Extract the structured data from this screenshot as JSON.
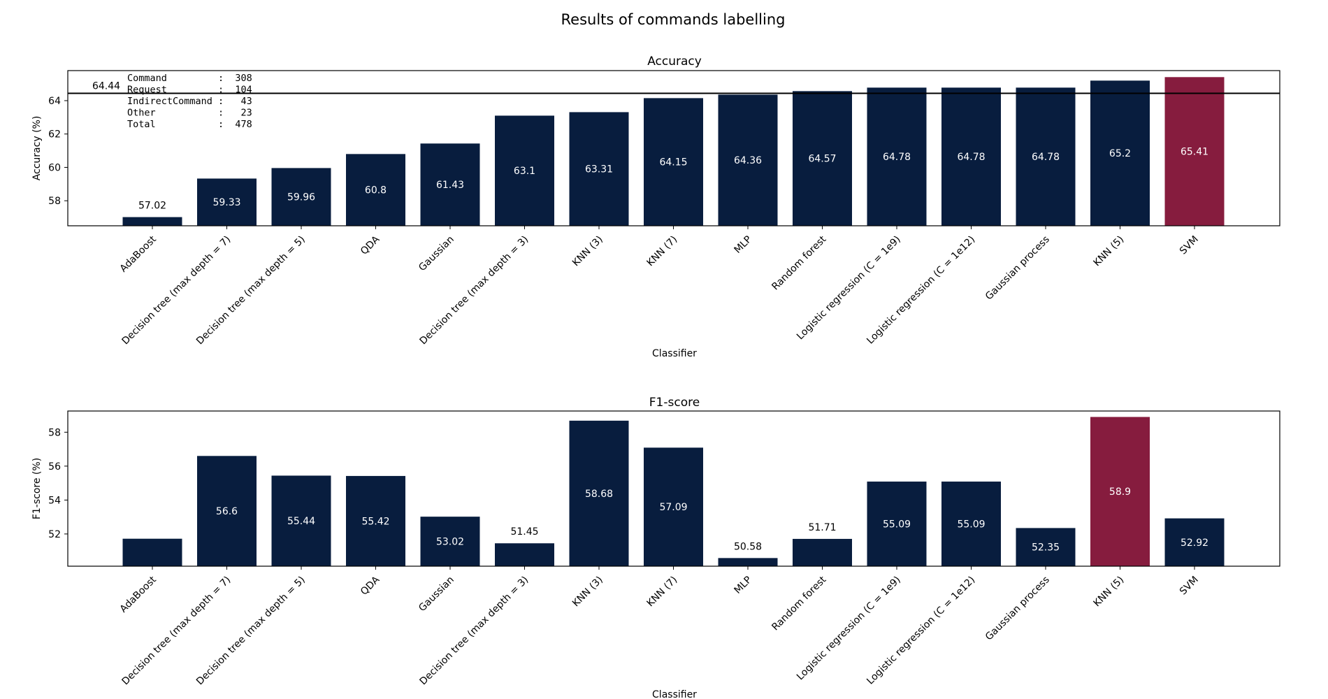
{
  "figure": {
    "title": "Results of commands labelling"
  },
  "colors": {
    "bar": "#081d3e",
    "highlight": "#861c3e",
    "frame": "#000000",
    "inside_label": "#ffffff",
    "outside_label": "#000000"
  },
  "chart_data": [
    {
      "type": "bar",
      "title": "Accuracy",
      "xlabel": "Classifier",
      "ylabel": "Accuracy (%)",
      "ylim": [
        56.5,
        65.8
      ],
      "yticks": [
        58,
        60,
        62,
        64
      ],
      "categories": [
        "AdaBoost",
        "Decision tree (max depth = 7)",
        "Decision tree (max depth = 5)",
        "QDA",
        "Gaussian",
        "Decision tree (max depth = 3)",
        "KNN (3)",
        "KNN (7)",
        "MLP",
        "Random forest",
        "Logistic regression (C = 1e9)",
        "Logistic regression (C = 1e12)",
        "Gaussian process",
        "KNN (5)",
        "SVM"
      ],
      "values": [
        57.02,
        59.33,
        59.96,
        60.8,
        61.43,
        63.1,
        63.31,
        64.15,
        64.36,
        64.57,
        64.78,
        64.78,
        64.78,
        65.2,
        65.41
      ],
      "value_labels": [
        "57.02",
        "59.33",
        "59.96",
        "60.8",
        "61.43",
        "63.1",
        "63.31",
        "64.15",
        "64.36",
        "64.57",
        "64.78",
        "64.78",
        "64.78",
        "65.2",
        "65.41"
      ],
      "highlight_index": 14,
      "reference_line": {
        "value": 64.44,
        "label": "64.44"
      },
      "annotation_lines": [
        "Command         :  308",
        "Request         :  104",
        "IndirectCommand :   43",
        "Other           :   23",
        "Total           :  478"
      ],
      "grid": false,
      "legend": "none"
    },
    {
      "type": "bar",
      "title": "F1-score",
      "xlabel": "Classifier",
      "ylabel": "F1-score (%)",
      "ylim": [
        50.1,
        59.25
      ],
      "yticks": [
        52,
        54,
        56,
        58
      ],
      "categories": [
        "AdaBoost",
        "Decision tree (max depth = 7)",
        "Decision tree (max depth = 5)",
        "QDA",
        "Gaussian",
        "Decision tree (max depth = 3)",
        "KNN (3)",
        "KNN (7)",
        "MLP",
        "Random forest",
        "Logistic regression (C = 1e9)",
        "Logistic regression (C = 1e12)",
        "Gaussian process",
        "KNN (5)",
        "SVM"
      ],
      "values": [
        51.72,
        56.6,
        55.44,
        55.42,
        53.02,
        51.45,
        58.68,
        57.09,
        50.58,
        51.71,
        55.09,
        55.09,
        52.35,
        58.9,
        52.92
      ],
      "value_labels": [
        null,
        "56.6",
        "55.44",
        "55.42",
        "53.02",
        "51.45",
        "58.68",
        "57.09",
        "50.58",
        "51.71",
        "55.09",
        "55.09",
        "52.35",
        "58.9",
        "52.92"
      ],
      "highlight_index": 13,
      "grid": false,
      "legend": "none"
    }
  ]
}
